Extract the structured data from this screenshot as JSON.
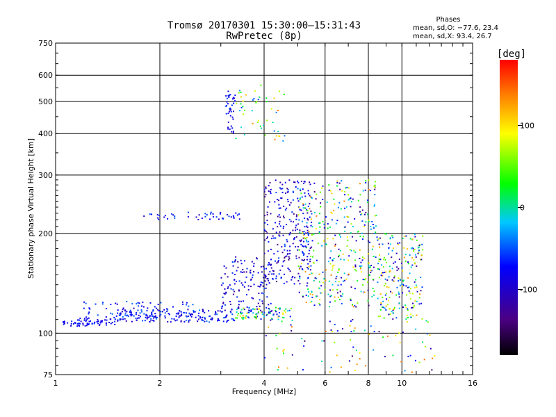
{
  "header": {
    "title_line1": "Tromsø 20170301 15:30:00–15:31:43",
    "title_line2": "RwPretec (8p)"
  },
  "phases_box": {
    "heading": "Phases",
    "line_o": "mean, sd,O: −77.6, 23.4",
    "line_x": "mean, sd,X:  93.4, 26.7"
  },
  "chart_data": {
    "type": "scatter",
    "title": "Tromsø 20170301 15:30:00–15:31:43",
    "subtitle": "RwPretec (8p)",
    "xlabel": "Frequency [MHz]",
    "ylabel": "Stationary phase Virtual Height [km]",
    "x_scale": "log",
    "y_scale": "log",
    "xlim": [
      1,
      16
    ],
    "ylim": [
      75,
      750
    ],
    "x_ticks": [
      "1",
      "2",
      "4",
      "6",
      "8",
      "10",
      "16"
    ],
    "x_tick_values": [
      1,
      2,
      4,
      6,
      8,
      10,
      16
    ],
    "y_ticks": [
      "75",
      "100",
      "200",
      "300",
      "400",
      "500",
      "600",
      "750"
    ],
    "y_tick_values": [
      75,
      100,
      200,
      300,
      400,
      500,
      600,
      750
    ],
    "grid": true,
    "colorbar": {
      "label": "[deg]",
      "ticks": [
        "100",
        "0",
        "-100"
      ],
      "tick_values": [
        100,
        0,
        -100
      ],
      "range": [
        -180,
        180
      ]
    },
    "clusters": [
      {
        "f": [
          1.05,
          1.5
        ],
        "h": [
          105,
          112
        ],
        "phase": [
          -100,
          -60
        ],
        "n": 70
      },
      {
        "f": [
          1.5,
          3.3
        ],
        "h": [
          108,
          118
        ],
        "phase": [
          -110,
          -40
        ],
        "n": 180
      },
      {
        "f": [
          1.2,
          2.6
        ],
        "h": [
          112,
          125
        ],
        "phase": [
          -100,
          -40
        ],
        "n": 60
      },
      {
        "f": [
          3.3,
          4.8
        ],
        "h": [
          110,
          120
        ],
        "phase": [
          -120,
          120
        ],
        "n": 90
      },
      {
        "f": [
          3.0,
          4.2
        ],
        "h": [
          115,
          170
        ],
        "phase": [
          -130,
          -50
        ],
        "n": 140
      },
      {
        "f": [
          4.0,
          5.5
        ],
        "h": [
          140,
          290
        ],
        "phase": [
          -140,
          -50
        ],
        "n": 260
      },
      {
        "f": [
          5.0,
          8.5
        ],
        "h": [
          120,
          290
        ],
        "phase": [
          -140,
          140
        ],
        "n": 380
      },
      {
        "f": [
          8.5,
          11.5
        ],
        "h": [
          110,
          200
        ],
        "phase": [
          -130,
          130
        ],
        "n": 220
      },
      {
        "f": [
          3.1,
          3.3
        ],
        "h": [
          400,
          540
        ],
        "phase": [
          -110,
          -50
        ],
        "n": 40
      },
      {
        "f": [
          3.3,
          4.6
        ],
        "h": [
          380,
          560
        ],
        "phase": [
          -60,
          140
        ],
        "n": 50
      },
      {
        "f": [
          1.8,
          3.4
        ],
        "h": [
          220,
          232
        ],
        "phase": [
          -100,
          -50
        ],
        "n": 45
      },
      {
        "f": [
          4.0,
          12.5
        ],
        "h": [
          75,
          110
        ],
        "phase": [
          -150,
          150
        ],
        "n": 90
      }
    ]
  }
}
